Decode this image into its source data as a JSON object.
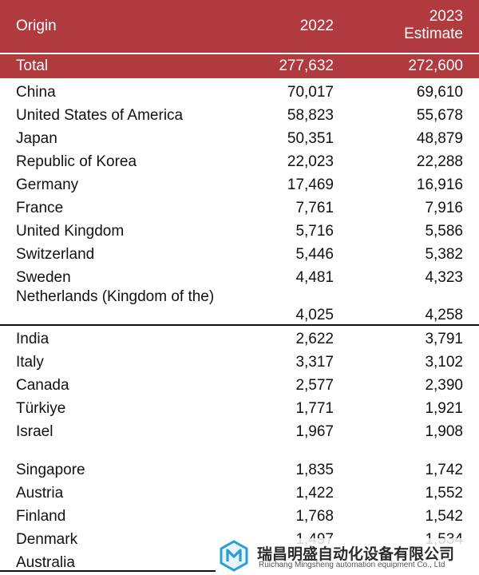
{
  "header": {
    "col_origin": "Origin",
    "col_2022": "2022",
    "col_2023_line1": "2023",
    "col_2023_line2": "Estimate"
  },
  "total": {
    "label": "Total",
    "v2022": "277,632",
    "v2023": "272,600"
  },
  "rows": [
    {
      "origin": "China",
      "v2022": "70,017",
      "v2023": "69,610"
    },
    {
      "origin": "United States of America",
      "v2022": "58,823",
      "v2023": "55,678"
    },
    {
      "origin": "Japan",
      "v2022": "50,351",
      "v2023": "48,879"
    },
    {
      "origin": "Republic of Korea",
      "v2022": "22,023",
      "v2023": "22,288"
    },
    {
      "origin": "Germany",
      "v2022": "17,469",
      "v2023": "16,916"
    },
    {
      "origin": "France",
      "v2022": "7,761",
      "v2023": "7,916"
    },
    {
      "origin": "United Kingdom",
      "v2022": "5,716",
      "v2023": "5,586"
    },
    {
      "origin": "Switzerland",
      "v2022": "5,446",
      "v2023": "5,382"
    },
    {
      "origin": "Sweden",
      "v2022": "4,481",
      "v2023": "4,323"
    },
    {
      "origin": "Netherlands (Kingdom of the)",
      "v2022": "4,025",
      "v2023": "4,258"
    },
    {
      "origin": "India",
      "v2022": "2,622",
      "v2023": "3,791"
    },
    {
      "origin": "Italy",
      "v2022": "3,317",
      "v2023": "3,102"
    },
    {
      "origin": "Canada",
      "v2022": "2,577",
      "v2023": "2,390"
    },
    {
      "origin": "Türkiye",
      "v2022": "1,771",
      "v2023": "1,921"
    },
    {
      "origin": "Israel",
      "v2022": "1,967",
      "v2023": "1,908"
    },
    {
      "origin": "Singapore",
      "v2022": "1,835",
      "v2023": "1,742"
    },
    {
      "origin": "Austria",
      "v2022": "1,422",
      "v2023": "1,552"
    },
    {
      "origin": "Finland",
      "v2022": "1,768",
      "v2023": "1,542"
    },
    {
      "origin": "Denmark",
      "v2022": "1,497",
      "v2023": "1,534"
    },
    {
      "origin": "Australia",
      "v2022": "",
      "v2023": ""
    }
  ],
  "watermark": {
    "cn": "瑞昌明盛自动化设备有限公司",
    "en": "Ruichang Mingsheng automation equipment Co., Ltd"
  },
  "colors": {
    "header_bg": "#b03a3d",
    "header_text": "#ffffff",
    "body_text": "#111111"
  }
}
